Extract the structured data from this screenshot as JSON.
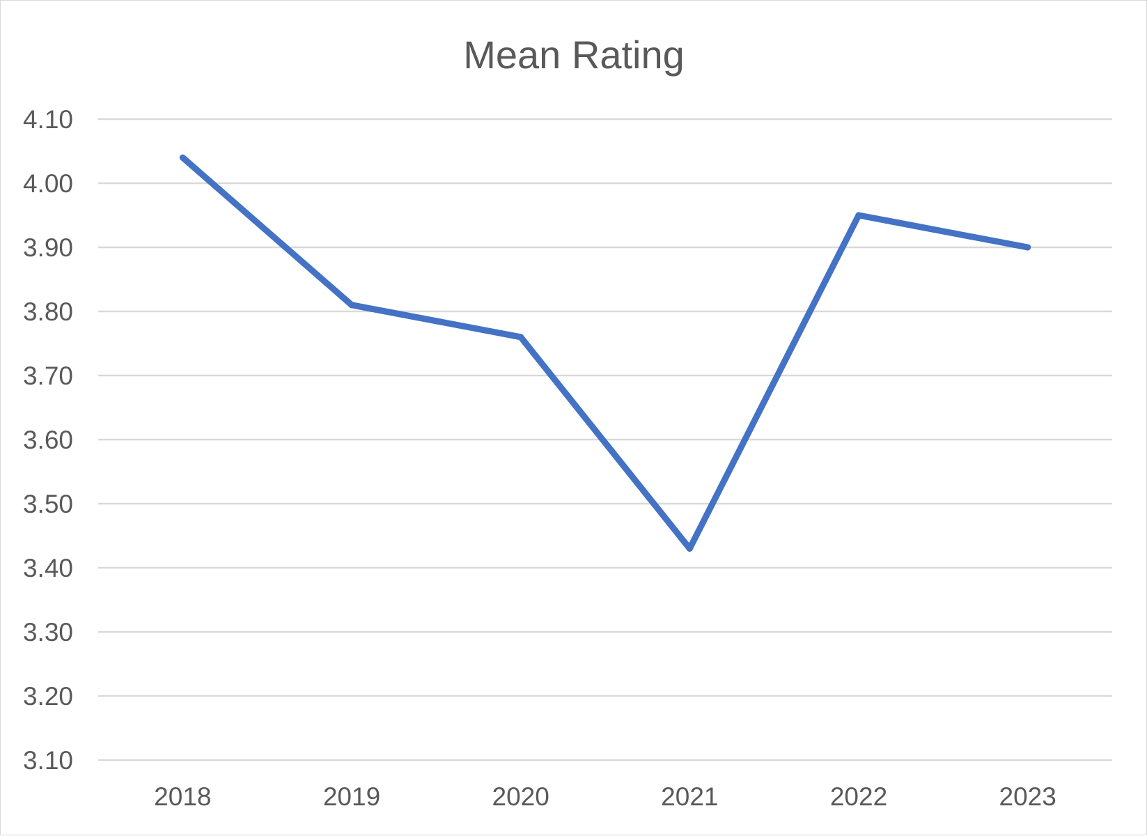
{
  "chart_data": {
    "type": "line",
    "title": "Mean Rating",
    "categories": [
      "2018",
      "2019",
      "2020",
      "2021",
      "2022",
      "2023"
    ],
    "series": [
      {
        "name": "Mean Rating",
        "values": [
          4.04,
          3.81,
          3.76,
          3.43,
          3.95,
          3.9
        ],
        "color": "#4472C4"
      }
    ],
    "xlabel": "",
    "ylabel": "",
    "ylim": [
      3.1,
      4.1
    ],
    "yticks": [
      "4.10",
      "4.00",
      "3.90",
      "3.80",
      "3.70",
      "3.60",
      "3.50",
      "3.40",
      "3.30",
      "3.20",
      "3.10"
    ],
    "grid": true,
    "legend": "none"
  },
  "colors": {
    "background": "#ffffff",
    "text": "#595959",
    "gridline": "#d9d9d9",
    "border": "#d9d9d9"
  }
}
